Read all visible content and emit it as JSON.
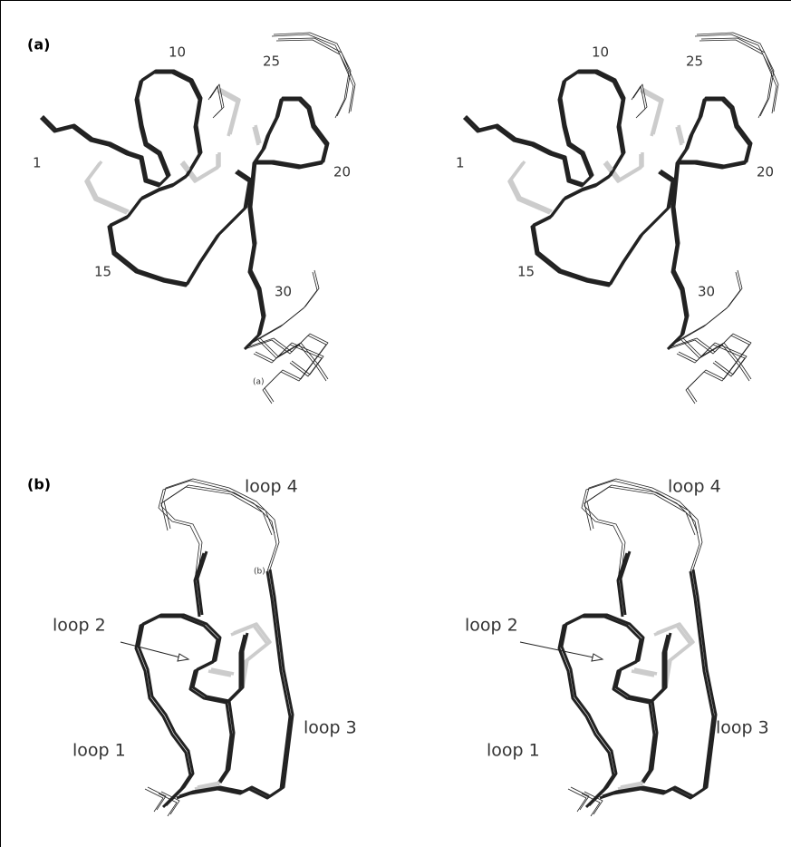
{
  "panels": [
    {
      "label": "(a)",
      "views": [
        {
          "labels": [
            "10",
            "25",
            "1",
            "20",
            "15",
            "30"
          ],
          "annotation": "(a)"
        },
        {
          "labels": [
            "10",
            "25",
            "1",
            "20",
            "15",
            "30"
          ]
        }
      ]
    },
    {
      "label": "(b)",
      "views": [
        {
          "labels": [
            "loop 4",
            "loop 2",
            "loop 3",
            "loop 1"
          ],
          "annotation": "(b)"
        },
        {
          "labels": [
            "loop 4",
            "loop 2",
            "loop 3",
            "loop 1"
          ]
        }
      ]
    }
  ]
}
